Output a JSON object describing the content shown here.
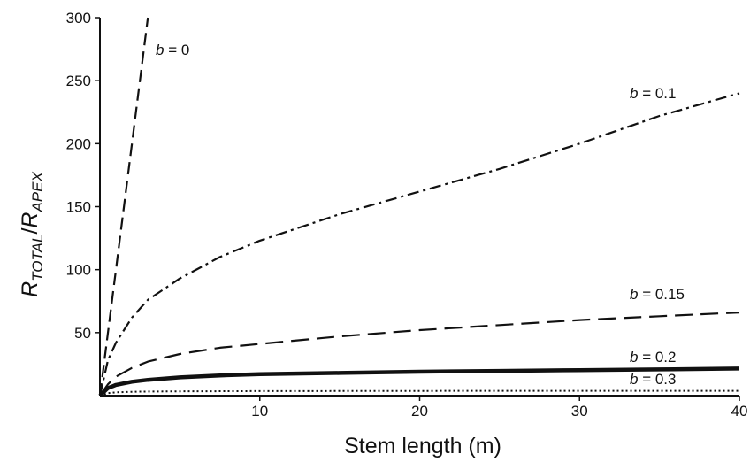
{
  "chart_data": {
    "type": "line",
    "title": "",
    "xlabel": "Stem length (m)",
    "ylabel": {
      "base1": "R",
      "sub1": "TOTAL",
      "sep": "/",
      "base2": "R",
      "sub2": "APEX"
    },
    "xlim": [
      0,
      40
    ],
    "ylim": [
      0,
      300
    ],
    "xticks": [
      10,
      20,
      30,
      40
    ],
    "yticks": [
      50,
      100,
      150,
      200,
      250,
      300
    ],
    "grid": false,
    "legend": "none",
    "series": [
      {
        "label_var": "b",
        "label_rest": " = 0",
        "style": "dashed",
        "x": [
          0,
          1,
          2,
          3
        ],
        "y": [
          0,
          100,
          200,
          300
        ]
      },
      {
        "label_var": "b",
        "label_rest": " = 0.1",
        "style": "dashdot",
        "x": [
          0,
          0.5,
          1,
          2,
          3,
          5,
          7.5,
          10,
          15,
          20,
          25,
          30,
          35,
          40
        ],
        "y": [
          0,
          28,
          42,
          62,
          76,
          93,
          110,
          123,
          144,
          162,
          180,
          200,
          222,
          240
        ]
      },
      {
        "label_var": "b",
        "label_rest": " = 0.15",
        "style": "longdash",
        "x": [
          0,
          0.5,
          1,
          2,
          3,
          5,
          7.5,
          10,
          15,
          20,
          25,
          30,
          35,
          40
        ],
        "y": [
          0,
          9,
          15,
          22,
          27,
          33,
          38,
          41,
          47,
          52,
          56,
          60,
          63,
          66
        ]
      },
      {
        "label_var": "b",
        "label_rest": " = 0.2",
        "style": "solid-thick",
        "x": [
          0,
          0.5,
          1,
          2,
          3,
          5,
          7.5,
          10,
          15,
          20,
          25,
          30,
          35,
          40
        ],
        "y": [
          0,
          6,
          8.5,
          11,
          12.5,
          14.5,
          16,
          17,
          18,
          19,
          19.6,
          20.2,
          20.8,
          21.5
        ]
      },
      {
        "label_var": "b",
        "label_rest": " = 0.3",
        "style": "dotted",
        "x": [
          0,
          0.5,
          1,
          2,
          3,
          5,
          10,
          20,
          30,
          40
        ],
        "y": [
          0,
          2,
          2.6,
          3,
          3.2,
          3.4,
          3.6,
          3.7,
          3.8,
          3.8
        ]
      }
    ]
  }
}
